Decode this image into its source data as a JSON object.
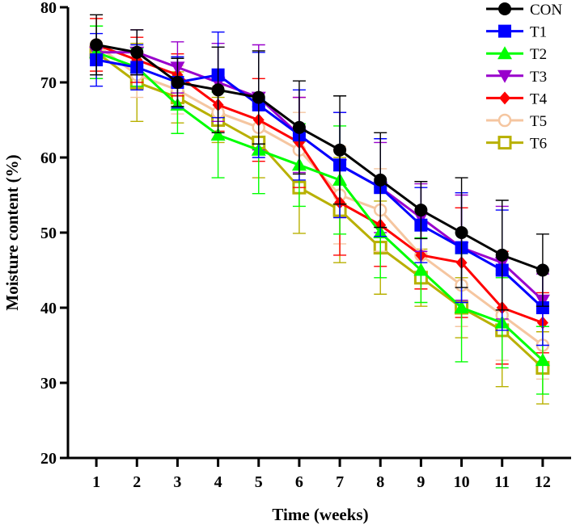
{
  "chart_data": {
    "type": "line",
    "title": "",
    "xlabel": "Time (weeks)",
    "ylabel": "Moisture content (%)",
    "xlim": [
      0.3,
      12.7
    ],
    "ylim": [
      20,
      80
    ],
    "x": [
      1,
      2,
      3,
      4,
      5,
      6,
      7,
      8,
      9,
      10,
      11,
      12
    ],
    "x_ticks": [
      "1",
      "2",
      "3",
      "4",
      "5",
      "6",
      "7",
      "8",
      "9",
      "10",
      "11",
      "12"
    ],
    "y_ticks": [
      20,
      30,
      40,
      50,
      60,
      70,
      80
    ],
    "y_tick_labels": [
      "20",
      "30",
      "40",
      "50",
      "60",
      "70",
      "80"
    ],
    "legend_position": "top-right",
    "series": [
      {
        "name": "T6",
        "color": "#b8b000",
        "marker": "square-open",
        "values": [
          74,
          70,
          68,
          65,
          62,
          56,
          53,
          48,
          44,
          40,
          37,
          32
        ],
        "errors": [
          3.5,
          5.2,
          3.4,
          3.0,
          4.7,
          6.1,
          7.0,
          6.2,
          3.8,
          4.0,
          7.5,
          4.8
        ]
      },
      {
        "name": "T5",
        "color": "#f5c6a0",
        "marker": "circle-open",
        "values": [
          75,
          71,
          69,
          66,
          64,
          61,
          55,
          53,
          47,
          43,
          39,
          35
        ],
        "errors": [
          3.5,
          3.0,
          3.2,
          3.5,
          3.5,
          5.0,
          6.5,
          5.5,
          4.5,
          5.5,
          6.0,
          4.5
        ]
      },
      {
        "name": "T4",
        "color": "#ff0000",
        "marker": "diamond",
        "values": [
          75,
          73,
          71,
          67,
          65,
          62,
          54,
          51,
          47,
          46,
          40,
          38
        ],
        "errors": [
          3.5,
          3.0,
          2.8,
          3.5,
          5.5,
          6.0,
          7.0,
          5.5,
          4.5,
          7.3,
          7.5,
          4.0
        ]
      },
      {
        "name": "T3",
        "color": "#9900cc",
        "marker": "triangle-down",
        "values": [
          74,
          74,
          72,
          70,
          68,
          63,
          59,
          56,
          52,
          48,
          46,
          41
        ],
        "errors": [
          3.5,
          3.0,
          3.4,
          5.2,
          7.0,
          5.0,
          7.0,
          6.0,
          4.5,
          7.0,
          7.5,
          3.5
        ]
      },
      {
        "name": "T2",
        "color": "#00ff00",
        "marker": "triangle-up",
        "values": [
          74,
          72,
          67,
          63,
          61,
          59,
          57,
          50,
          45,
          40,
          38,
          33
        ],
        "errors": [
          3.5,
          2.5,
          3.8,
          5.7,
          5.8,
          5.5,
          7.2,
          6.0,
          4.3,
          7.2,
          6.0,
          4.5
        ]
      },
      {
        "name": "T1",
        "color": "#0000ff",
        "marker": "square",
        "values": [
          73,
          72,
          70,
          71,
          67,
          63,
          59,
          56,
          51,
          48,
          45,
          40
        ],
        "errors": [
          3.5,
          3.0,
          3.4,
          5.7,
          7.0,
          6.0,
          7.0,
          6.5,
          5.0,
          7.3,
          8.0,
          5.0
        ]
      },
      {
        "name": "CON",
        "color": "#000000",
        "marker": "circle",
        "values": [
          75,
          74,
          70,
          69,
          68,
          64,
          61,
          57,
          53,
          50,
          47,
          45
        ],
        "errors": [
          4.0,
          3.0,
          3.2,
          5.7,
          6.2,
          6.2,
          7.2,
          6.3,
          3.8,
          7.3,
          7.3,
          4.8
        ]
      }
    ],
    "legend_order": [
      "CON",
      "T1",
      "T2",
      "T3",
      "T4",
      "T5",
      "T6"
    ]
  }
}
